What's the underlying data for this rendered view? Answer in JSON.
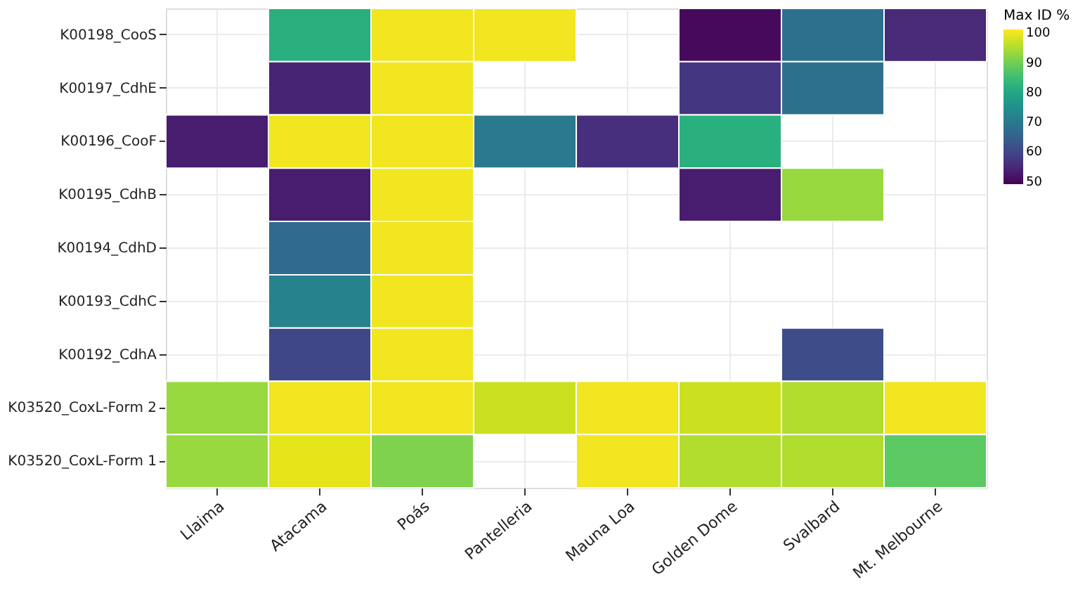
{
  "chart_data": {
    "type": "heatmap",
    "legend_title": "Max ID %",
    "categories": [
      "Llaima",
      "Atacama",
      "Poás",
      "Pantelleria",
      "Mauna Loa",
      "Golden Dome",
      "Svalbard",
      "Mt. Melbourne"
    ],
    "y_categories": [
      "K00198_CooS",
      "K00197_CdhE",
      "K00196_CooF",
      "K00195_CdhB",
      "K00194_CdhD",
      "K00193_CdhC",
      "K00192_CdhA",
      "K03520_CoxL-Form 2",
      "K03520_CoxL-Form 1"
    ],
    "cells": [
      [
        null,
        82,
        100,
        100,
        null,
        50,
        68,
        55
      ],
      [
        null,
        54,
        100,
        null,
        null,
        57,
        68,
        null
      ],
      [
        53,
        100,
        100,
        70,
        56,
        82,
        null,
        null
      ],
      [
        null,
        53,
        100,
        null,
        null,
        53,
        93,
        null
      ],
      [
        null,
        67,
        100,
        null,
        null,
        null,
        null,
        null
      ],
      [
        null,
        72,
        100,
        null,
        null,
        null,
        null,
        null
      ],
      [
        null,
        60,
        100,
        null,
        null,
        null,
        61,
        null
      ],
      [
        93,
        100,
        100,
        97,
        100,
        97,
        95,
        100
      ],
      [
        93,
        99,
        91,
        null,
        100,
        95,
        95,
        88
      ]
    ],
    "clim": [
      49,
      101
    ],
    "cticks": [
      50,
      60,
      70,
      80,
      90,
      100
    ],
    "grid": true
  }
}
